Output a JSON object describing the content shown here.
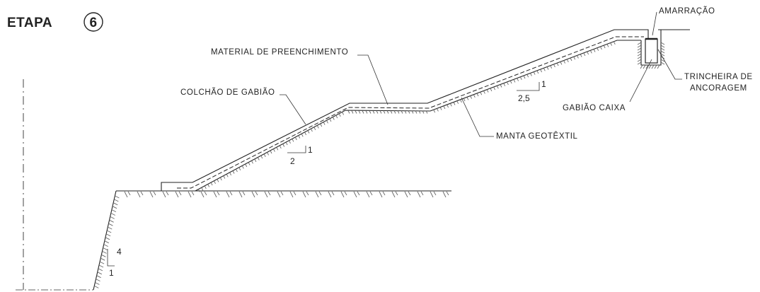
{
  "title": {
    "stage_word": "ETAPA",
    "stage_number": "6"
  },
  "labels": {
    "filling_material": "MATERIAL DE PREENCHIMENTO",
    "gabion_mattress": "COLCHÃO DE GABIÃO",
    "tie": "AMARRAÇÃO",
    "anchor_trench_line1": "TRINCHEIRA DE",
    "anchor_trench_line2": "ANCORAGEM",
    "box_gabion": "GABIÃO CAIXA",
    "geotextile": "MANTA GEOTÊXTIL"
  },
  "slopes": {
    "lower": {
      "rise": "1",
      "run": "2"
    },
    "upper": {
      "rise": "1",
      "run": "2,5"
    },
    "cut": {
      "rise": "4",
      "run": "1"
    }
  },
  "colors": {
    "line": "#222222",
    "hatch": "#666666",
    "background": "#ffffff"
  }
}
